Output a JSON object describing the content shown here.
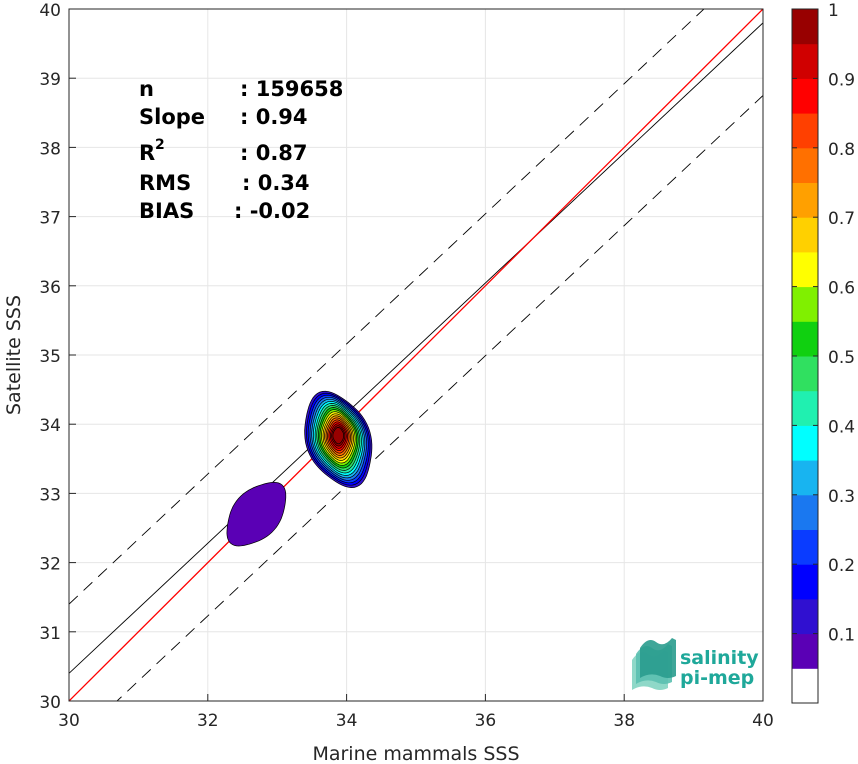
{
  "chart_data": {
    "type": "scatter",
    "subtype": "density-contour",
    "xlabel": "Marine mammals SSS",
    "ylabel": "Satellite SSS",
    "xlim": [
      30,
      40
    ],
    "ylim": [
      30,
      40
    ],
    "xticks": [
      30,
      32,
      34,
      36,
      38,
      40
    ],
    "yticks": [
      30,
      31,
      32,
      33,
      34,
      35,
      36,
      37,
      38,
      39,
      40
    ],
    "grid": true,
    "stats": [
      {
        "label": "n",
        "value": ": 159658"
      },
      {
        "label": "Slope",
        "value": ": 0.94"
      },
      {
        "label": "R",
        "sup": "2",
        "value": ": 0.87"
      },
      {
        "label": "RMS",
        "value": ": 0.34"
      },
      {
        "label": "BIAS",
        "value": ": -0.02"
      }
    ],
    "lines": {
      "identity": {
        "slope": 1,
        "intercept": 0,
        "color": "#ff0000"
      },
      "fit": {
        "slope": 0.94,
        "intercept": 2.2,
        "color": "#000000"
      },
      "upper_bound": {
        "slope": 0.94,
        "intercept": 3.2,
        "color": "#000000",
        "style": "dashed"
      },
      "lower_bound": {
        "slope": 0.94,
        "intercept": 1.15,
        "color": "#000000",
        "style": "dashed"
      }
    },
    "density_clusters": [
      {
        "center_x": 33.88,
        "center_y": 33.78,
        "peak": 1.0,
        "levels": [
          0.05,
          0.1,
          0.15,
          0.2,
          0.25,
          0.3,
          0.35,
          0.4,
          0.45,
          0.5,
          0.55,
          0.6,
          0.65,
          0.7,
          0.75,
          0.8,
          0.85,
          0.9,
          0.95
        ]
      },
      {
        "center_x": 32.7,
        "center_y": 32.7,
        "peak": 0.1,
        "levels": [
          0.05
        ]
      }
    ],
    "colorbar": {
      "ticks": [
        "0.1",
        "0.2",
        "0.3",
        "0.4",
        "0.5",
        "0.6",
        "0.7",
        "0.8",
        "0.9",
        "1"
      ],
      "colors": [
        "#ffffff",
        "#5a00b5",
        "#3010d0",
        "#0000ff",
        "#0a3cff",
        "#1a78f0",
        "#18b4f0",
        "#00ffff",
        "#20f0b0",
        "#30e060",
        "#10d010",
        "#80f000",
        "#ffff00",
        "#ffd000",
        "#ffa000",
        "#ff7000",
        "#ff4000",
        "#ff0000",
        "#d00000",
        "#980000"
      ]
    }
  },
  "logo": {
    "line1": "salinity",
    "line2": "pi-mep"
  }
}
